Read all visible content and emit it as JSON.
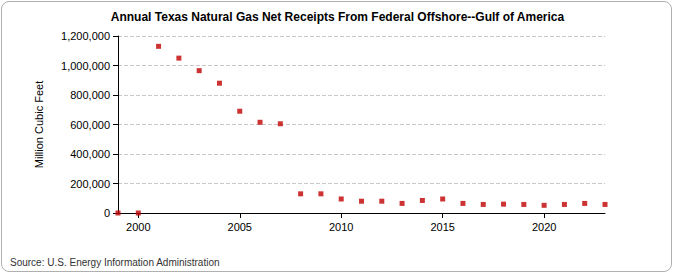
{
  "chart_data": {
    "type": "scatter",
    "title": "Annual Texas Natural Gas Net Receipts From Federal Offshore--Gulf of America",
    "y_label": "Million Cubic Feet",
    "annotations": [
      "Source: U.S. Energy Information Administration"
    ],
    "x": [
      1999,
      2000,
      2001,
      2002,
      2003,
      2004,
      2005,
      2006,
      2007,
      2008,
      2009,
      2010,
      2011,
      2012,
      2013,
      2014,
      2015,
      2016,
      2017,
      2018,
      2019,
      2020,
      2021,
      2022,
      2023
    ],
    "values": [
      0,
      0,
      1130000,
      1050000,
      965000,
      880000,
      690000,
      615000,
      605000,
      130000,
      130000,
      95000,
      80000,
      80000,
      65000,
      85000,
      95000,
      65000,
      58000,
      60000,
      58000,
      52000,
      58000,
      65000,
      58000
    ],
    "color": "#c00000",
    "marker": "square",
    "xlim": [
      1999,
      2023
    ],
    "xticks": [
      2000,
      2005,
      2010,
      2015,
      2020
    ],
    "ylim": [
      0,
      1200000
    ],
    "yticks": [
      {
        "value": 0,
        "label": "0"
      },
      {
        "value": 200000,
        "label": "200,000"
      },
      {
        "value": 400000,
        "label": "400,000"
      },
      {
        "value": 600000,
        "label": "600,000"
      },
      {
        "value": 800000,
        "label": "800,000"
      },
      {
        "value": 1000000,
        "label": "1,000,000"
      },
      {
        "value": 1200000,
        "label": "1,200,000"
      }
    ],
    "grid": true
  }
}
